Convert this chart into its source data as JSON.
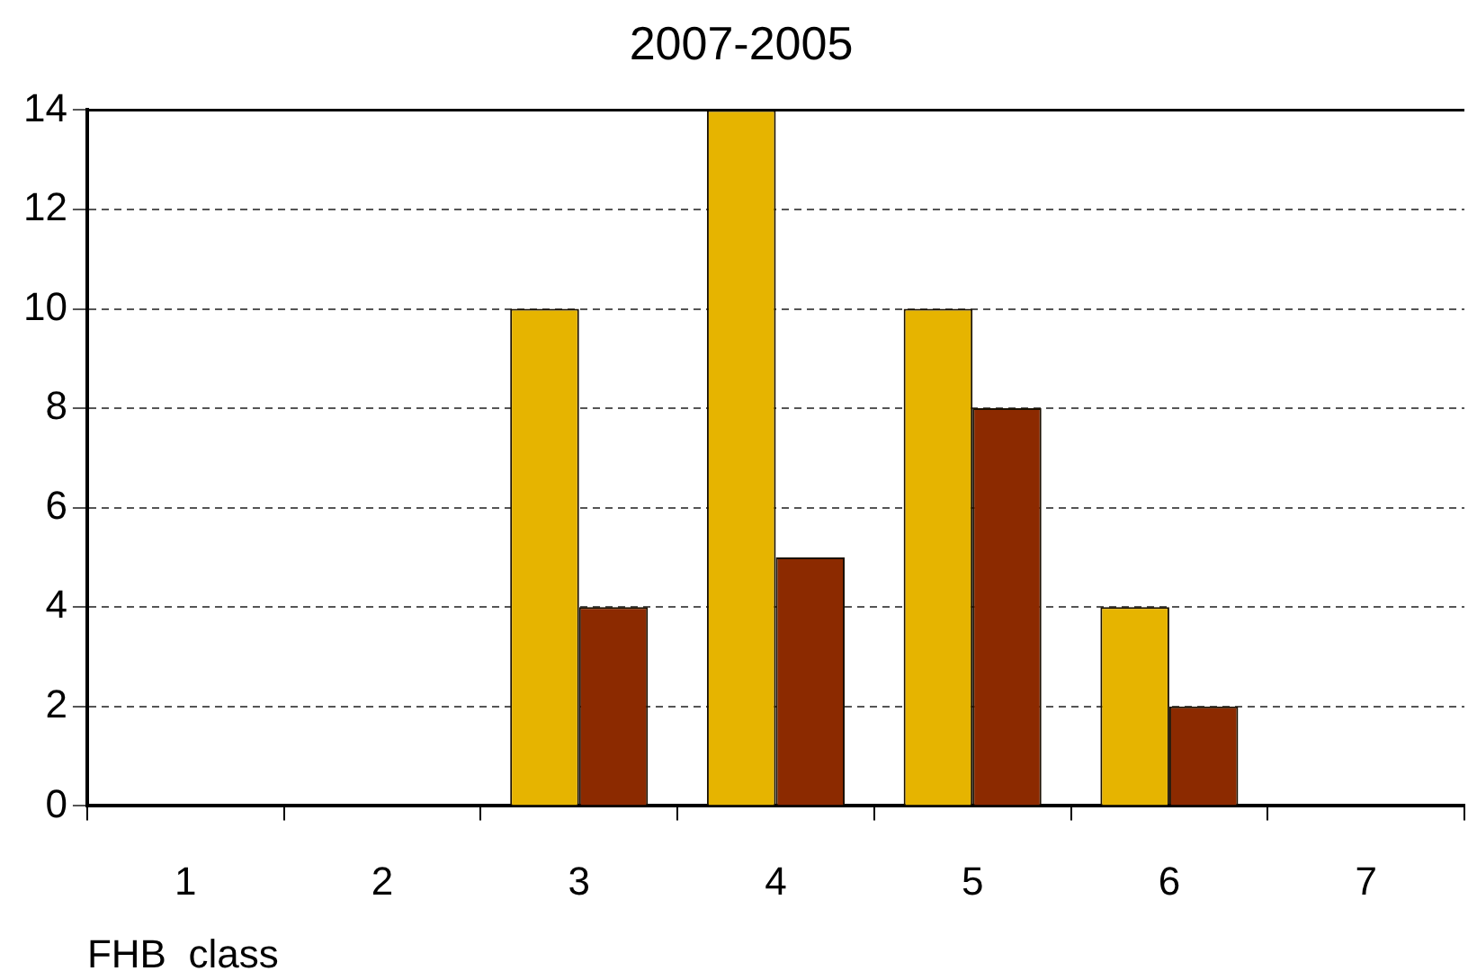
{
  "chart_data": {
    "type": "bar",
    "title": "2007-2005",
    "xlabel": "FHB  class",
    "categories": [
      "1",
      "2",
      "3",
      "4",
      "5",
      "6",
      "7"
    ],
    "series": [
      {
        "color": "#e6b400",
        "values": [
          0,
          0,
          10,
          14,
          10,
          4,
          0
        ]
      },
      {
        "color": "#8c2a00",
        "values": [
          0,
          0,
          4,
          5,
          8,
          2,
          0
        ]
      }
    ],
    "ylim": [
      0,
      14
    ],
    "yticks": [
      0,
      2,
      4,
      6,
      8,
      10,
      12,
      14
    ],
    "grid": "y",
    "legend": false
  }
}
